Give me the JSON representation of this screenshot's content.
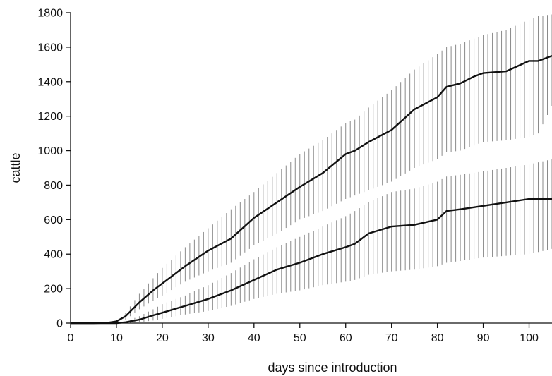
{
  "chart_data": {
    "type": "line",
    "title": "",
    "xlabel": "days since introduction",
    "ylabel": "cattle",
    "xlim": [
      0,
      105
    ],
    "ylim": [
      0,
      1800
    ],
    "x_ticks": [
      0,
      10,
      20,
      30,
      40,
      50,
      60,
      70,
      80,
      90,
      100
    ],
    "y_ticks": [
      0,
      200,
      400,
      600,
      800,
      1000,
      1200,
      1400,
      1600,
      1800
    ],
    "grid": false,
    "legend": "none",
    "colors": {
      "mean": "#111111",
      "error_bars": "#8a8a8a"
    },
    "series": [
      {
        "x": [
          0,
          5,
          8,
          10,
          12,
          15,
          18,
          20,
          25,
          30,
          35,
          40,
          45,
          50,
          55,
          60,
          62,
          65,
          70,
          75,
          80,
          82,
          85,
          88,
          90,
          95,
          100,
          102,
          105
        ],
        "y": [
          0,
          0,
          2,
          10,
          40,
          120,
          190,
          230,
          330,
          420,
          490,
          610,
          700,
          790,
          870,
          980,
          1000,
          1050,
          1120,
          1240,
          1310,
          1370,
          1390,
          1430,
          1450,
          1460,
          1520,
          1520,
          1550
        ],
        "lower": [
          0,
          0,
          0,
          5,
          20,
          80,
          130,
          160,
          240,
          300,
          350,
          450,
          520,
          600,
          650,
          720,
          740,
          770,
          820,
          900,
          950,
          990,
          1000,
          1030,
          1050,
          1060,
          1080,
          1100,
          1260
        ],
        "upper": [
          0,
          0,
          5,
          20,
          60,
          170,
          260,
          320,
          440,
          550,
          660,
          760,
          870,
          980,
          1060,
          1160,
          1180,
          1250,
          1350,
          1470,
          1560,
          1600,
          1620,
          1650,
          1670,
          1700,
          1760,
          1780,
          1790
        ]
      },
      {
        "x": [
          0,
          10,
          12,
          15,
          18,
          20,
          25,
          30,
          35,
          40,
          45,
          50,
          55,
          60,
          62,
          65,
          70,
          75,
          80,
          82,
          85,
          90,
          95,
          100,
          105
        ],
        "y": [
          0,
          0,
          5,
          20,
          45,
          60,
          100,
          140,
          190,
          250,
          310,
          350,
          400,
          440,
          460,
          520,
          560,
          570,
          600,
          650,
          660,
          680,
          700,
          720,
          720
        ],
        "lower": [
          0,
          0,
          0,
          5,
          15,
          25,
          50,
          70,
          100,
          140,
          170,
          190,
          220,
          240,
          250,
          280,
          300,
          310,
          330,
          350,
          360,
          380,
          390,
          400,
          430
        ],
        "upper": [
          0,
          0,
          10,
          40,
          80,
          110,
          160,
          220,
          290,
          370,
          440,
          500,
          560,
          620,
          650,
          700,
          760,
          780,
          820,
          850,
          860,
          880,
          900,
          920,
          950
        ]
      }
    ]
  }
}
